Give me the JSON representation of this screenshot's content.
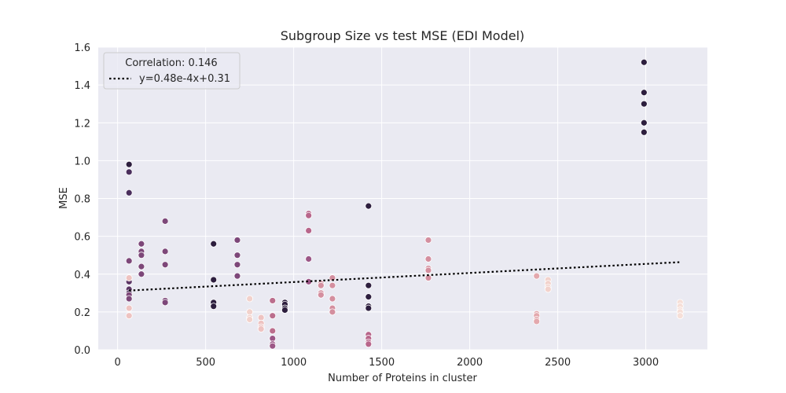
{
  "chart_data": {
    "type": "scatter",
    "title": "Subgroup Size vs test MSE (EDI Model)",
    "xlabel": "Number of Proteins in cluster",
    "ylabel": "MSE",
    "xlim": [
      -110,
      3350
    ],
    "ylim": [
      0,
      1.6
    ],
    "xticks": [
      0,
      500,
      1000,
      1500,
      2000,
      2500,
      3000
    ],
    "yticks": [
      0.0,
      0.2,
      0.4,
      0.6,
      0.8,
      1.0,
      1.2,
      1.4,
      1.6
    ],
    "grid": true,
    "legend": {
      "placement": "upper-left",
      "title": "Correlation: 0.146",
      "entries": [
        {
          "label": "y=0.48e-4x+0.31",
          "style": "dotted",
          "color": "#000000"
        }
      ]
    },
    "trendline": {
      "slope": 4.8e-05,
      "intercept": 0.31,
      "x_start": 65,
      "x_end": 3200
    },
    "colors": {
      "background": "#eaeaf2",
      "grid": "#ffffff",
      "trend": "#000000"
    },
    "points": [
      {
        "x": 65,
        "y": 0.98,
        "c": "#2d1e3e"
      },
      {
        "x": 65,
        "y": 0.94,
        "c": "#4a2e5c"
      },
      {
        "x": 65,
        "y": 0.83,
        "c": "#4a2e5c"
      },
      {
        "x": 65,
        "y": 0.47,
        "c": "#7d4779"
      },
      {
        "x": 65,
        "y": 0.36,
        "c": "#5d3766"
      },
      {
        "x": 65,
        "y": 0.32,
        "c": "#5d3766"
      },
      {
        "x": 65,
        "y": 0.3,
        "c": "#4a2e5c"
      },
      {
        "x": 65,
        "y": 0.29,
        "c": "#7d4779"
      },
      {
        "x": 65,
        "y": 0.27,
        "c": "#7d4779"
      },
      {
        "x": 65,
        "y": 0.38,
        "c": "#eec3c1"
      },
      {
        "x": 65,
        "y": 0.22,
        "c": "#eec3c1"
      },
      {
        "x": 65,
        "y": 0.18,
        "c": "#eec3c1"
      },
      {
        "x": 135,
        "y": 0.56,
        "c": "#7d4779"
      },
      {
        "x": 135,
        "y": 0.52,
        "c": "#7d4779"
      },
      {
        "x": 135,
        "y": 0.5,
        "c": "#7d4779"
      },
      {
        "x": 135,
        "y": 0.44,
        "c": "#7d4779"
      },
      {
        "x": 135,
        "y": 0.4,
        "c": "#7d4779"
      },
      {
        "x": 270,
        "y": 0.68,
        "c": "#7d4779"
      },
      {
        "x": 270,
        "y": 0.52,
        "c": "#7d4779"
      },
      {
        "x": 270,
        "y": 0.45,
        "c": "#7d4779"
      },
      {
        "x": 270,
        "y": 0.26,
        "c": "#7d4779"
      },
      {
        "x": 270,
        "y": 0.25,
        "c": "#7d4779"
      },
      {
        "x": 545,
        "y": 0.56,
        "c": "#2d1e3e"
      },
      {
        "x": 545,
        "y": 0.37,
        "c": "#2d1e3e"
      },
      {
        "x": 545,
        "y": 0.25,
        "c": "#2d1e3e"
      },
      {
        "x": 545,
        "y": 0.23,
        "c": "#2d1e3e"
      },
      {
        "x": 680,
        "y": 0.58,
        "c": "#7d4779"
      },
      {
        "x": 680,
        "y": 0.5,
        "c": "#7d4779"
      },
      {
        "x": 680,
        "y": 0.45,
        "c": "#7d4779"
      },
      {
        "x": 680,
        "y": 0.39,
        "c": "#7d4779"
      },
      {
        "x": 750,
        "y": 0.27,
        "c": "#f2d2cc"
      },
      {
        "x": 750,
        "y": 0.2,
        "c": "#f2d2cc"
      },
      {
        "x": 750,
        "y": 0.17,
        "c": "#f2d2cc"
      },
      {
        "x": 750,
        "y": 0.16,
        "c": "#f2d2cc"
      },
      {
        "x": 815,
        "y": 0.17,
        "c": "#eec3c1"
      },
      {
        "x": 815,
        "y": 0.14,
        "c": "#eec3c1"
      },
      {
        "x": 815,
        "y": 0.12,
        "c": "#eec3c1"
      },
      {
        "x": 815,
        "y": 0.11,
        "c": "#eec3c1"
      },
      {
        "x": 880,
        "y": 0.26,
        "c": "#bb6e8d"
      },
      {
        "x": 880,
        "y": 0.18,
        "c": "#bb6e8d"
      },
      {
        "x": 880,
        "y": 0.1,
        "c": "#bb6e8d"
      },
      {
        "x": 880,
        "y": 0.06,
        "c": "#9c5787"
      },
      {
        "x": 880,
        "y": 0.03,
        "c": "#9c5787"
      },
      {
        "x": 880,
        "y": 0.02,
        "c": "#9c5787"
      },
      {
        "x": 950,
        "y": 0.25,
        "c": "#2d1e3e"
      },
      {
        "x": 950,
        "y": 0.24,
        "c": "#2d1e3e"
      },
      {
        "x": 950,
        "y": 0.22,
        "c": "#2d1e3e"
      },
      {
        "x": 950,
        "y": 0.21,
        "c": "#2d1e3e"
      },
      {
        "x": 1085,
        "y": 0.72,
        "c": "#b8668b"
      },
      {
        "x": 1085,
        "y": 0.71,
        "c": "#b8668b"
      },
      {
        "x": 1085,
        "y": 0.63,
        "c": "#b8668b"
      },
      {
        "x": 1085,
        "y": 0.48,
        "c": "#9c5787"
      },
      {
        "x": 1085,
        "y": 0.36,
        "c": "#9c5787"
      },
      {
        "x": 1155,
        "y": 0.35,
        "c": "#d48f9f"
      },
      {
        "x": 1155,
        "y": 0.34,
        "c": "#d48f9f"
      },
      {
        "x": 1155,
        "y": 0.3,
        "c": "#d48f9f"
      },
      {
        "x": 1155,
        "y": 0.29,
        "c": "#d48f9f"
      },
      {
        "x": 1220,
        "y": 0.38,
        "c": "#d48f9f"
      },
      {
        "x": 1220,
        "y": 0.34,
        "c": "#d48f9f"
      },
      {
        "x": 1220,
        "y": 0.27,
        "c": "#d48f9f"
      },
      {
        "x": 1220,
        "y": 0.22,
        "c": "#d48f9f"
      },
      {
        "x": 1220,
        "y": 0.2,
        "c": "#d48f9f"
      },
      {
        "x": 1425,
        "y": 0.76,
        "c": "#2d1e3e"
      },
      {
        "x": 1425,
        "y": 0.34,
        "c": "#2d1e3e"
      },
      {
        "x": 1425,
        "y": 0.28,
        "c": "#2d1e3e"
      },
      {
        "x": 1425,
        "y": 0.23,
        "c": "#2d1e3e"
      },
      {
        "x": 1425,
        "y": 0.22,
        "c": "#2d1e3e"
      },
      {
        "x": 1425,
        "y": 0.08,
        "c": "#b8668b"
      },
      {
        "x": 1425,
        "y": 0.06,
        "c": "#b8668b"
      },
      {
        "x": 1425,
        "y": 0.04,
        "c": "#b8668b"
      },
      {
        "x": 1425,
        "y": 0.03,
        "c": "#b8668b"
      },
      {
        "x": 1765,
        "y": 0.58,
        "c": "#d48f9f"
      },
      {
        "x": 1765,
        "y": 0.48,
        "c": "#d48f9f"
      },
      {
        "x": 1765,
        "y": 0.43,
        "c": "#d48f9f"
      },
      {
        "x": 1765,
        "y": 0.42,
        "c": "#d48f9f"
      },
      {
        "x": 1765,
        "y": 0.38,
        "c": "#d48f9f"
      },
      {
        "x": 2380,
        "y": 0.39,
        "c": "#e3a8ad"
      },
      {
        "x": 2380,
        "y": 0.19,
        "c": "#e3a8ad"
      },
      {
        "x": 2380,
        "y": 0.18,
        "c": "#e3a8ad"
      },
      {
        "x": 2380,
        "y": 0.16,
        "c": "#e3a8ad"
      },
      {
        "x": 2380,
        "y": 0.15,
        "c": "#e3a8ad"
      },
      {
        "x": 2445,
        "y": 0.37,
        "c": "#f2d2cc"
      },
      {
        "x": 2445,
        "y": 0.35,
        "c": "#f2d2cc"
      },
      {
        "x": 2445,
        "y": 0.33,
        "c": "#f2d2cc"
      },
      {
        "x": 2445,
        "y": 0.32,
        "c": "#f2d2cc"
      },
      {
        "x": 2990,
        "y": 1.52,
        "c": "#2d1e3e"
      },
      {
        "x": 2990,
        "y": 1.36,
        "c": "#2d1e3e"
      },
      {
        "x": 2990,
        "y": 1.3,
        "c": "#2d1e3e"
      },
      {
        "x": 2990,
        "y": 1.2,
        "c": "#2d1e3e"
      },
      {
        "x": 2990,
        "y": 1.15,
        "c": "#2d1e3e"
      },
      {
        "x": 3195,
        "y": 0.25,
        "c": "#f6dfd8"
      },
      {
        "x": 3195,
        "y": 0.23,
        "c": "#f6dfd8"
      },
      {
        "x": 3195,
        "y": 0.21,
        "c": "#f6dfd8"
      },
      {
        "x": 3195,
        "y": 0.2,
        "c": "#f6dfd8"
      },
      {
        "x": 3195,
        "y": 0.18,
        "c": "#f6dfd8"
      }
    ]
  }
}
